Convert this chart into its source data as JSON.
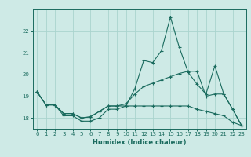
{
  "xlabel": "Humidex (Indice chaleur)",
  "background_color": "#ceeae6",
  "line_color": "#1a6b5e",
  "grid_color": "#aad4ce",
  "xlim": [
    -0.5,
    23.5
  ],
  "ylim": [
    17.5,
    23.0
  ],
  "yticks": [
    18,
    19,
    20,
    21,
    22
  ],
  "xticks": [
    0,
    1,
    2,
    3,
    4,
    5,
    6,
    7,
    8,
    9,
    10,
    11,
    12,
    13,
    14,
    15,
    16,
    17,
    18,
    19,
    20,
    21,
    22,
    23
  ],
  "series": {
    "line1": [
      19.2,
      18.6,
      18.6,
      18.1,
      18.1,
      17.85,
      17.85,
      18.0,
      18.4,
      18.4,
      18.55,
      19.35,
      20.65,
      20.55,
      21.1,
      22.65,
      21.25,
      20.1,
      19.55,
      19.1,
      20.4,
      19.1,
      18.4,
      17.65
    ],
    "line2": [
      19.2,
      18.6,
      18.6,
      18.2,
      18.2,
      18.0,
      18.05,
      18.3,
      18.55,
      18.55,
      18.65,
      19.1,
      19.45,
      19.6,
      19.75,
      19.9,
      20.05,
      20.15,
      20.15,
      19.0,
      19.1,
      19.1,
      18.4,
      17.65
    ],
    "line3": [
      19.2,
      18.6,
      18.6,
      18.2,
      18.2,
      18.0,
      18.05,
      18.3,
      18.55,
      18.55,
      18.55,
      18.55,
      18.55,
      18.55,
      18.55,
      18.55,
      18.55,
      18.55,
      18.4,
      18.3,
      18.2,
      18.1,
      17.8,
      17.65
    ]
  },
  "tick_fontsize": 5.0,
  "xlabel_fontsize": 6.0,
  "linewidth": 0.8,
  "markersize": 3.5,
  "markeredgewidth": 0.8
}
